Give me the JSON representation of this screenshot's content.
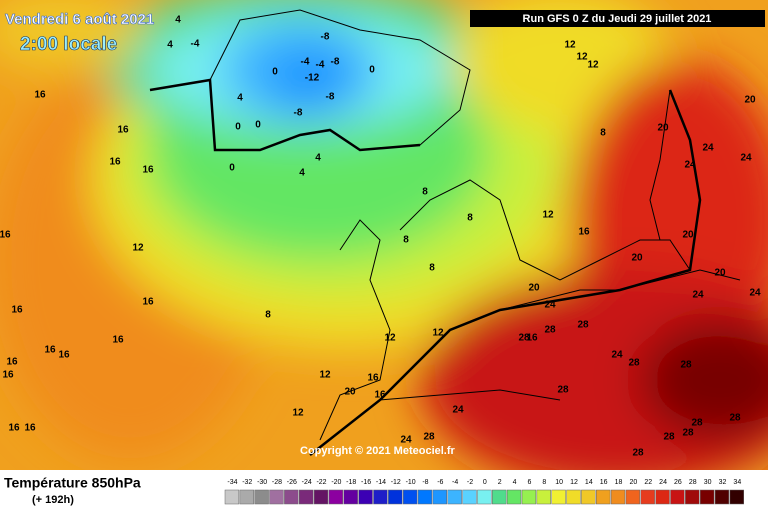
{
  "header": {
    "valid_time": "Vendredi 6 août 2021",
    "local_time": "2:00 locale",
    "run": "Run GFS 0 Z du Jeudi 29 juillet 2021"
  },
  "copyright": "Copyright © 2021 Meteociel.fr",
  "footer": {
    "title": "Température 850hPa",
    "lead": "(+ 192h)"
  },
  "scale": {
    "ticks": [
      -34,
      -32,
      -30,
      -28,
      -26,
      -24,
      -22,
      -20,
      -18,
      -16,
      -14,
      -12,
      -10,
      -8,
      -6,
      -4,
      -2,
      0,
      2,
      4,
      6,
      8,
      10,
      12,
      14,
      16,
      18,
      20,
      22,
      24,
      26,
      28,
      30,
      32,
      34
    ],
    "colors": [
      "#c8c8c8",
      "#aaaaaa",
      "#8c8c8c",
      "#a070a0",
      "#8c4c8c",
      "#7a2a7a",
      "#641464",
      "#8c00a0",
      "#6400a0",
      "#3c00b4",
      "#1e1ec8",
      "#0032dc",
      "#0050f0",
      "#0078ff",
      "#1e96ff",
      "#3cb4ff",
      "#5ad2ff",
      "#78f0f0",
      "#50dc8c",
      "#64e664",
      "#96f050",
      "#c8f03c",
      "#f0f032",
      "#f0dc28",
      "#f0c828",
      "#f0a01e",
      "#f08c1e",
      "#f0641e",
      "#e63c1e",
      "#dc2814",
      "#c81414",
      "#a00a0a",
      "#780000",
      "#500000",
      "#320000"
    ]
  },
  "map_labels": [
    16,
    16,
    16,
    16,
    16,
    12,
    16,
    16,
    16,
    16,
    16,
    16,
    16,
    16,
    16,
    12,
    12,
    8,
    0,
    4,
    4,
    8,
    8,
    8,
    8,
    12,
    16,
    8,
    12,
    12,
    12,
    20,
    24,
    24,
    24,
    20,
    20,
    20,
    20,
    24,
    24,
    20,
    24,
    28,
    28,
    28,
    24,
    28,
    28,
    28,
    24,
    28,
    24,
    28,
    28,
    28,
    28,
    28,
    16,
    16,
    20,
    12,
    12,
    16,
    -8,
    -4,
    -4,
    -12,
    -8,
    -8,
    -8,
    0,
    0,
    0,
    0,
    4,
    4,
    -4,
    4
  ]
}
